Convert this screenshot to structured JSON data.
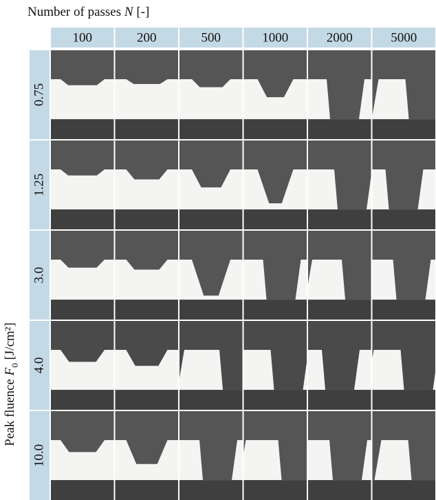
{
  "header": {
    "title": {
      "text": "Number of passes ",
      "symbol": "N",
      "unit": " [-]"
    },
    "columns": [
      "100",
      "200",
      "500",
      "1000",
      "2000",
      "5000"
    ]
  },
  "side": {
    "title": {
      "text": "Peak fluence ",
      "symbol": "F",
      "subscript": "0",
      "unit": " [J/cm²]"
    },
    "rows": [
      "0.75",
      "1.25",
      "3.0",
      "4.0",
      "10.0"
    ]
  }
}
